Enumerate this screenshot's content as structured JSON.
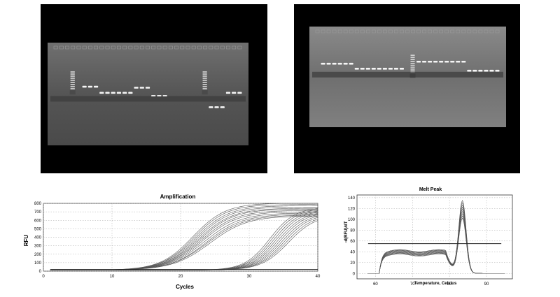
{
  "colors": {
    "background": "#ffffff",
    "panel": "#000000",
    "curve": "#555555",
    "threshold": "#222222"
  },
  "gels": [
    {
      "ladder_lanes": [
        3,
        26
      ],
      "lane_count": 33,
      "bands": [
        {
          "lane": 5,
          "level": 0.42
        },
        {
          "lane": 6,
          "level": 0.42
        },
        {
          "lane": 7,
          "level": 0.42
        },
        {
          "lane": 8,
          "level": 0.48
        },
        {
          "lane": 9,
          "level": 0.48
        },
        {
          "lane": 10,
          "level": 0.48
        },
        {
          "lane": 11,
          "level": 0.48
        },
        {
          "lane": 12,
          "level": 0.48
        },
        {
          "lane": 13,
          "level": 0.48
        },
        {
          "lane": 14,
          "level": 0.43
        },
        {
          "lane": 15,
          "level": 0.43
        },
        {
          "lane": 16,
          "level": 0.43
        },
        {
          "lane": 17,
          "level": 0.51
        },
        {
          "lane": 18,
          "level": 0.51
        },
        {
          "lane": 19,
          "level": 0.51
        },
        {
          "lane": 27,
          "level": 0.62
        },
        {
          "lane": 28,
          "level": 0.62
        },
        {
          "lane": 29,
          "level": 0.62
        },
        {
          "lane": 30,
          "level": 0.48
        },
        {
          "lane": 31,
          "level": 0.48
        },
        {
          "lane": 32,
          "level": 0.48
        }
      ]
    },
    {
      "ladder_lanes": [
        17
      ],
      "lane_count": 33,
      "bands": [
        {
          "lane": 1,
          "level": 0.36
        },
        {
          "lane": 2,
          "level": 0.36
        },
        {
          "lane": 3,
          "level": 0.36
        },
        {
          "lane": 4,
          "level": 0.36
        },
        {
          "lane": 5,
          "level": 0.36
        },
        {
          "lane": 6,
          "level": 0.36
        },
        {
          "lane": 7,
          "level": 0.41
        },
        {
          "lane": 8,
          "level": 0.41
        },
        {
          "lane": 9,
          "level": 0.41
        },
        {
          "lane": 10,
          "level": 0.41
        },
        {
          "lane": 11,
          "level": 0.41
        },
        {
          "lane": 12,
          "level": 0.41
        },
        {
          "lane": 13,
          "level": 0.41
        },
        {
          "lane": 14,
          "level": 0.41
        },
        {
          "lane": 15,
          "level": 0.41
        },
        {
          "lane": 18,
          "level": 0.34
        },
        {
          "lane": 19,
          "level": 0.34
        },
        {
          "lane": 20,
          "level": 0.34
        },
        {
          "lane": 21,
          "level": 0.34
        },
        {
          "lane": 22,
          "level": 0.34
        },
        {
          "lane": 23,
          "level": 0.34
        },
        {
          "lane": 24,
          "level": 0.34
        },
        {
          "lane": 25,
          "level": 0.34
        },
        {
          "lane": 26,
          "level": 0.34
        },
        {
          "lane": 27,
          "level": 0.43
        },
        {
          "lane": 28,
          "level": 0.43
        },
        {
          "lane": 29,
          "level": 0.43
        },
        {
          "lane": 30,
          "level": 0.43
        },
        {
          "lane": 31,
          "level": 0.43
        },
        {
          "lane": 32,
          "level": 0.43
        }
      ]
    }
  ],
  "chart_data": [
    {
      "type": "line",
      "title": "Amplification",
      "xlabel": "Cycles",
      "ylabel": "RFU",
      "xlim": [
        0,
        40
      ],
      "ylim": [
        0,
        800
      ],
      "xticks": [
        0,
        10,
        20,
        30,
        40
      ],
      "yticks": [
        0,
        100,
        200,
        300,
        400,
        500,
        600,
        700,
        800
      ],
      "grid": true,
      "threshold": 20,
      "series": [
        {
          "ct": 21.8,
          "plateau": 790,
          "slope": 0.42
        },
        {
          "ct": 22.0,
          "plateau": 775,
          "slope": 0.42
        },
        {
          "ct": 22.2,
          "plateau": 760,
          "slope": 0.41
        },
        {
          "ct": 22.4,
          "plateau": 745,
          "slope": 0.41
        },
        {
          "ct": 22.6,
          "plateau": 730,
          "slope": 0.4
        },
        {
          "ct": 22.8,
          "plateau": 720,
          "slope": 0.4
        },
        {
          "ct": 23.0,
          "plateau": 705,
          "slope": 0.39
        },
        {
          "ct": 23.2,
          "plateau": 690,
          "slope": 0.39
        },
        {
          "ct": 23.5,
          "plateau": 675,
          "slope": 0.38
        },
        {
          "ct": 23.8,
          "plateau": 660,
          "slope": 0.38
        },
        {
          "ct": 24.0,
          "plateau": 650,
          "slope": 0.37
        },
        {
          "ct": 24.3,
          "plateau": 640,
          "slope": 0.37
        },
        {
          "ct": 33.0,
          "plateau": 740,
          "slope": 0.55
        },
        {
          "ct": 33.3,
          "plateau": 730,
          "slope": 0.55
        },
        {
          "ct": 33.6,
          "plateau": 720,
          "slope": 0.54
        },
        {
          "ct": 33.9,
          "plateau": 710,
          "slope": 0.54
        },
        {
          "ct": 34.2,
          "plateau": 700,
          "slope": 0.53
        },
        {
          "ct": 34.5,
          "plateau": 690,
          "slope": 0.53
        },
        {
          "ct": 34.8,
          "plateau": 680,
          "slope": 0.52
        },
        {
          "ct": 35.1,
          "plateau": 670,
          "slope": 0.52
        },
        {
          "ct": 35.4,
          "plateau": 660,
          "slope": 0.51
        },
        {
          "ct": 35.7,
          "plateau": 650,
          "slope": 0.51
        }
      ]
    },
    {
      "type": "line",
      "title": "Melt Peak",
      "xlabel": "Temperature, Celsius",
      "ylabel": "-d(RFU)/dT",
      "xlim": [
        55,
        97
      ],
      "ylim": [
        -10,
        145
      ],
      "xticks": [
        60,
        70,
        80,
        90
      ],
      "yticks": [
        0,
        20,
        40,
        60,
        80,
        100,
        120,
        140
      ],
      "grid": true,
      "threshold": 55,
      "peak_temperature": 83.5,
      "series": [
        {
          "peak": 132,
          "shoulder": 42
        },
        {
          "peak": 128,
          "shoulder": 41
        },
        {
          "peak": 124,
          "shoulder": 40
        },
        {
          "peak": 120,
          "shoulder": 39
        },
        {
          "peak": 116,
          "shoulder": 38
        },
        {
          "peak": 112,
          "shoulder": 37
        },
        {
          "peak": 108,
          "shoulder": 36
        },
        {
          "peak": 104,
          "shoulder": 35
        },
        {
          "peak": 100,
          "shoulder": 34
        }
      ]
    }
  ]
}
